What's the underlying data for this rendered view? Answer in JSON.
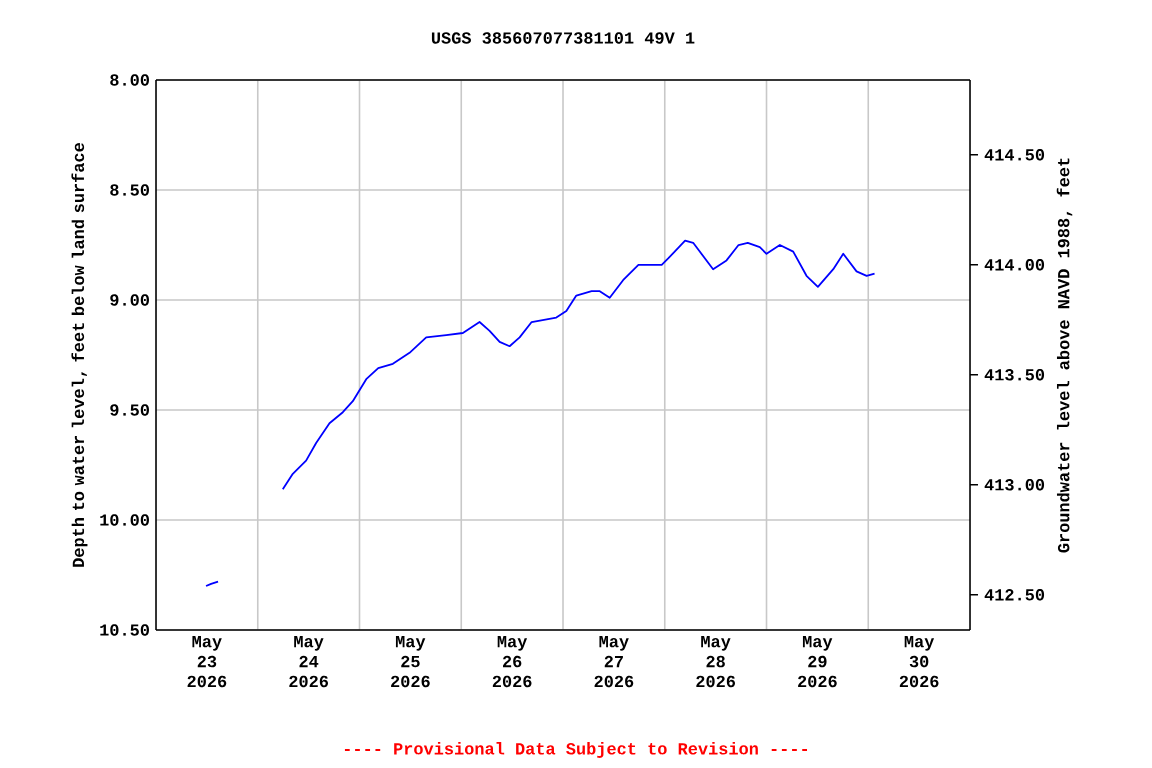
{
  "chart_data": {
    "type": "line",
    "title": "USGS 385607077381101 49V  1",
    "ylabel": "Depth to water level, feet below land surface",
    "y2label": "Groundwater level above NAVD 1988, feet",
    "annotations": [
      "---- Provisional Data Subject to Revision ----"
    ],
    "xlim": [
      "2026-05-23",
      "2026-05-31"
    ],
    "xticks": [
      {
        "value": "2026-05-23T12:00",
        "label": "May 23 2026"
      },
      {
        "value": "2026-05-24T12:00",
        "label": "May 24 2026"
      },
      {
        "value": "2026-05-25T12:00",
        "label": "May 25 2026"
      },
      {
        "value": "2026-05-26T12:00",
        "label": "May 26 2026"
      },
      {
        "value": "2026-05-27T12:00",
        "label": "May 27 2026"
      },
      {
        "value": "2026-05-28T12:00",
        "label": "May 28 2026"
      },
      {
        "value": "2026-05-29T12:00",
        "label": "May 29 2026"
      },
      {
        "value": "2026-05-30T12:00",
        "label": "May 30 2026"
      },
      {
        "value": "2026-05-24",
        "label": null
      },
      {
        "value": "2026-05-25",
        "label": null
      },
      {
        "value": "2026-05-26",
        "label": null
      },
      {
        "value": "2026-05-27",
        "label": null
      },
      {
        "value": "2026-05-28",
        "label": null
      },
      {
        "value": "2026-05-29",
        "label": null
      },
      {
        "value": "2026-05-30",
        "label": null
      }
    ],
    "ylim": [
      10.5,
      8.0
    ],
    "yticks": [
      {
        "value": 8.0,
        "label": "8.00"
      },
      {
        "value": 8.5,
        "label": "8.50"
      },
      {
        "value": 9.0,
        "label": "9.00"
      },
      {
        "value": 9.5,
        "label": "9.50"
      },
      {
        "value": 10.0,
        "label": "10.00"
      },
      {
        "value": 10.5,
        "label": "10.50"
      }
    ],
    "y2lim": [
      412.34,
      414.84
    ],
    "y2ticks": [
      {
        "value": 412.5,
        "label": "412.50"
      },
      {
        "value": 413.0,
        "label": "413.00"
      },
      {
        "value": 413.5,
        "label": "413.50"
      },
      {
        "value": 414.0,
        "label": "414.00"
      },
      {
        "value": 414.5,
        "label": "414.50"
      }
    ],
    "grid": true,
    "marker": "none",
    "line_style": "solid",
    "x": [
      "2026-05-24T05:54",
      "2026-05-24T08:16",
      "2026-05-24T11:24",
      "2026-05-24T13:46",
      "2026-05-24T16:55",
      "2026-05-24T20:04",
      "2026-05-24T22:25",
      "2026-05-25T01:35",
      "2026-05-25T04:25",
      "2026-05-25T07:52",
      "2026-05-25T11:48",
      "2026-05-25T15:44",
      "2026-05-25T20:27",
      "2026-05-26T00:23",
      "2026-05-26T04:19",
      "2026-05-26T06:41",
      "2026-05-26T09:03",
      "2026-05-26T11:24",
      "2026-05-26T13:46",
      "2026-05-26T16:36",
      "2026-05-26T22:25",
      "2026-05-27T00:47",
      "2026-05-27T03:08",
      "2026-05-27T06:45",
      "2026-05-27T08:40",
      "2026-05-27T11:01",
      "2026-05-27T14:10",
      "2026-05-27T17:47",
      "2026-05-27T23:17",
      "2026-05-28T00:52",
      "2026-05-28T04:48",
      "2026-05-28T06:42",
      "2026-05-28T11:24",
      "2026-05-28T14:34",
      "2026-05-28T17:24",
      "2026-05-28T19:35",
      "2026-05-28T22:25",
      "2026-05-29T00:00",
      "2026-05-29T03:09",
      "2026-05-29T06:18",
      "2026-05-29T09:26",
      "2026-05-29T12:07",
      "2026-05-29T15:45",
      "2026-05-29T18:06",
      "2026-05-29T21:14",
      "2026-05-29T23:37",
      "2026-05-30T01:29"
    ],
    "series": [
      {
        "color": "#0000ff",
        "values": [
          9.86,
          9.79,
          9.73,
          9.65,
          9.56,
          9.51,
          9.46,
          9.36,
          9.31,
          9.29,
          9.24,
          9.17,
          9.16,
          9.15,
          9.1,
          9.14,
          9.19,
          9.21,
          9.17,
          9.1,
          9.08,
          9.05,
          8.98,
          8.96,
          8.96,
          8.99,
          8.91,
          8.84,
          8.84,
          8.81,
          8.73,
          8.74,
          8.86,
          8.82,
          8.75,
          8.74,
          8.76,
          8.79,
          8.75,
          8.78,
          8.89,
          8.94,
          8.86,
          8.79,
          8.87,
          8.89,
          8.88
        ]
      },
      {
        "color": "#0000ff",
        "x": [
          "2026-05-23T11:48",
          "2026-05-23T13:00",
          "2026-05-23T14:38"
        ],
        "values": [
          10.3,
          10.29,
          10.28
        ]
      }
    ]
  }
}
